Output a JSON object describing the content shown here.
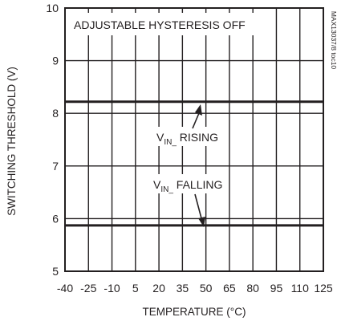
{
  "chart_data": {
    "type": "line",
    "title": "",
    "xlabel": "TEMPERATURE (°C)",
    "ylabel": "SWITCHING THRESHOLD (V)",
    "x_ticks": [
      "-40",
      "-25",
      "-10",
      "5",
      "20",
      "35",
      "50",
      "65",
      "80",
      "95",
      "110",
      "125"
    ],
    "y_ticks": [
      "5",
      "6",
      "7",
      "8",
      "9",
      "10"
    ],
    "xlim": [
      -40,
      125
    ],
    "ylim": [
      5,
      10
    ],
    "grid": true,
    "series": [
      {
        "name": "VIN_ RISING",
        "label_main": "V",
        "label_sub": "IN_",
        "label_tail": " RISING",
        "x": [
          -40,
          125
        ],
        "y": [
          8.22,
          8.22
        ]
      },
      {
        "name": "VIN_ FALLING",
        "label_main": "V",
        "label_sub": "IN_",
        "label_tail": " FALLING",
        "x": [
          -40,
          125
        ],
        "y": [
          5.87,
          5.87
        ]
      }
    ],
    "annotations": {
      "condition": "ADJUSTABLE HYSTERESIS OFF",
      "figure_id": "MAX13037/8 toc10"
    },
    "colors": {
      "line": "#231f20",
      "background": "#ffffff"
    }
  }
}
